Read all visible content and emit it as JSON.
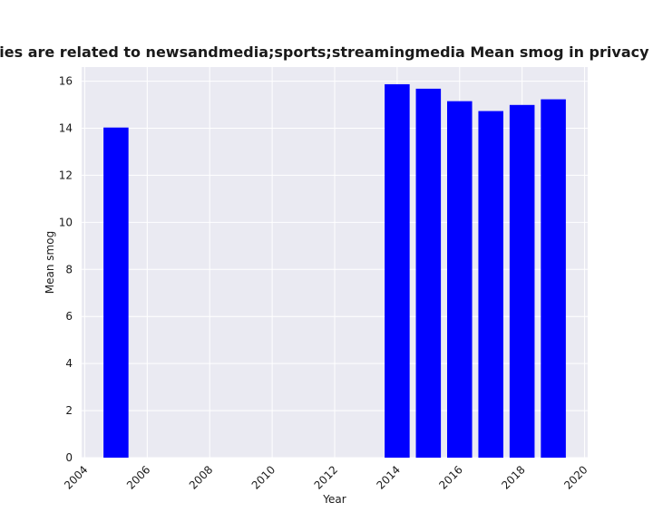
{
  "chart_data": {
    "type": "bar",
    "title": "categories are related to newsandmedia;sports;streamingmedia Mean smog in privacy policies",
    "xlabel": "Year",
    "ylabel": "Mean smog",
    "x": [
      2005,
      2014,
      2015,
      2016,
      2017,
      2018,
      2019
    ],
    "values": [
      14.03,
      15.87,
      15.68,
      15.15,
      14.73,
      14.99,
      15.23
    ],
    "xlim": [
      2003.9,
      2020.1
    ],
    "ylim": [
      0,
      16.6
    ],
    "xticks": [
      "2004",
      "2006",
      "2008",
      "2010",
      "2012",
      "2014",
      "2016",
      "2018",
      "2020"
    ],
    "yticks": [
      "0",
      "2",
      "4",
      "6",
      "8",
      "10",
      "12",
      "14",
      "16"
    ],
    "bar_color": "#0000ff",
    "plot_background": "#eaeaf2",
    "grid": true,
    "grid_color": "#ffffff"
  }
}
